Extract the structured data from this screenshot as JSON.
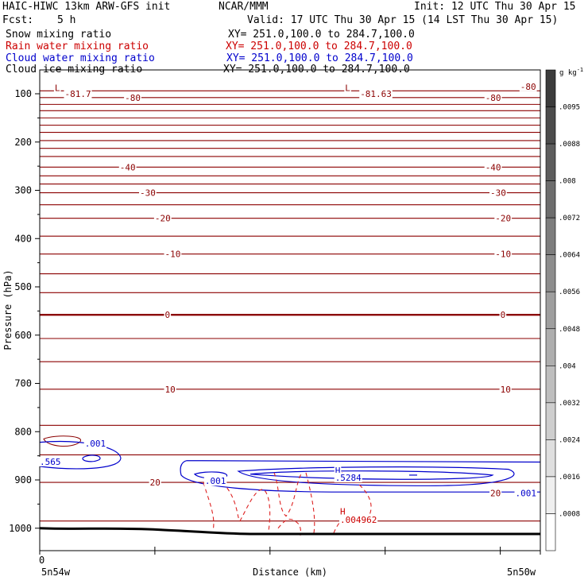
{
  "header": {
    "title": "HAIC-HIWC 13km ARW-GFS init",
    "org": "NCAR/MMM",
    "init": "Init: 12 UTC Thu 30 Apr 15",
    "fcst_label": "Fcst:",
    "fcst_value": "5 h",
    "valid": "Valid: 17 UTC Thu 30 Apr 15 (14 LST Thu 30 Apr 15)"
  },
  "fields": [
    {
      "name": "Snow mixing ratio",
      "xy": "XY= 251.0,100.0 to 284.7,100.0",
      "color": "#000000"
    },
    {
      "name": "Rain water mixing ratio",
      "xy": "XY= 251.0,100.0 to 284.7,100.0",
      "color": "#cc0000"
    },
    {
      "name": "Cloud water mixing ratio",
      "xy": "XY= 251.0,100.0 to 284.7,100.0",
      "color": "#0000cc"
    },
    {
      "name": "Cloud ice mixing ratio",
      "xy": "XY= 251.0,100.0 to 284.7,100.0",
      "color": "#000000"
    }
  ],
  "chart_data": {
    "type": "contour",
    "ylabel": "Pressure (hPa)",
    "xlabel": "Distance (km)",
    "x_start_tick": "0",
    "x_left_label": "5n54w",
    "x_right_label": "5n50w",
    "y_ticks": [
      100,
      200,
      300,
      400,
      500,
      600,
      700,
      800,
      900,
      1000
    ],
    "ylim": [
      1045,
      50
    ],
    "temperature_contours": {
      "color": "#8b0000",
      "labels": [
        {
          "text": "L",
          "x": 0.03,
          "p": 88
        },
        {
          "text": "-81.7",
          "x": 0.05,
          "p": 100
        },
        {
          "text": "L",
          "x": 0.61,
          "p": 88
        },
        {
          "text": "-81.63",
          "x": 0.64,
          "p": 100
        },
        {
          "text": "-80",
          "x": 0.96,
          "p": 85
        },
        {
          "text": "-80",
          "x": 0.17,
          "p": 108
        },
        {
          "text": "-80",
          "x": 0.89,
          "p": 108
        },
        {
          "text": "-40",
          "x": 0.16,
          "p": 252
        },
        {
          "text": "-40",
          "x": 0.89,
          "p": 252
        },
        {
          "text": "-30",
          "x": 0.2,
          "p": 305
        },
        {
          "text": "-30",
          "x": 0.9,
          "p": 305
        },
        {
          "text": "-20",
          "x": 0.23,
          "p": 358
        },
        {
          "text": "-20",
          "x": 0.91,
          "p": 358
        },
        {
          "text": "-10",
          "x": 0.25,
          "p": 432
        },
        {
          "text": "-10",
          "x": 0.91,
          "p": 432
        },
        {
          "text": "0",
          "x": 0.25,
          "p": 558
        },
        {
          "text": "0",
          "x": 0.92,
          "p": 558
        },
        {
          "text": "10",
          "x": 0.25,
          "p": 712
        },
        {
          "text": "10",
          "x": 0.92,
          "p": 712
        },
        {
          "text": "20",
          "x": 0.22,
          "p": 905
        },
        {
          "text": "20",
          "x": 0.9,
          "p": 927
        }
      ]
    },
    "cloud_water_labels": [
      {
        "text": ".001",
        "x": 0.09,
        "p": 824
      },
      {
        "text": ".565",
        "x": 0.0,
        "p": 862
      },
      {
        "text": ".001",
        "x": 0.33,
        "p": 902
      },
      {
        "text": "H",
        "x": 0.59,
        "p": 880
      },
      {
        "text": ".5284",
        "x": 0.59,
        "p": 895
      },
      {
        "text": ".001",
        "x": 0.95,
        "p": 927
      }
    ],
    "rain_water_labels": [
      {
        "text": "H",
        "x": 0.6,
        "p": 965
      },
      {
        "text": ".004962",
        "x": 0.6,
        "p": 982
      }
    ],
    "colorbar": {
      "unit_label": "g kg",
      "unit_exp": "-1",
      "levels": [
        ".0095",
        ".0088",
        ".008",
        ".0072",
        ".0064",
        ".0056",
        ".0048",
        ".004",
        ".0032",
        ".0024",
        ".0016",
        ".0008"
      ]
    }
  }
}
